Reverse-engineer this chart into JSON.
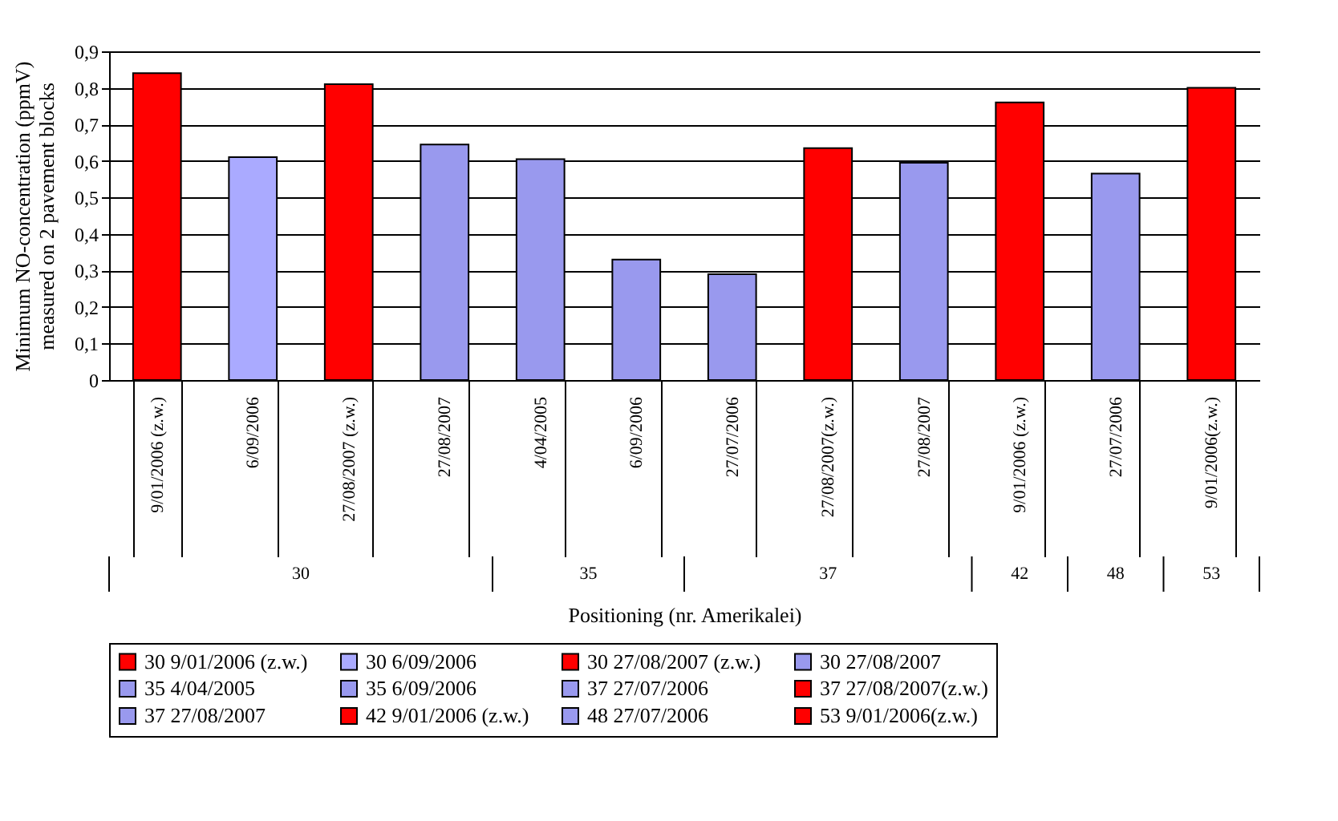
{
  "chart_data": {
    "type": "bar",
    "ylabel": "Minimum NO-concentration (ppmV)\nmeasured on 2 pavement blocks",
    "xlabel": "Positioning (nr. Amerikalei)",
    "categories": [
      "9/01/2006 (z.w.)",
      "6/09/2006",
      "27/08/2007 (z.w.)",
      "27/08/2007",
      "4/04/2005",
      "6/09/2006",
      "27/07/2006",
      "27/08/2007(z.w.)",
      "27/08/2007",
      "9/01/2006 (z.w.)",
      "27/07/2006",
      "9/01/2006(z.w.)"
    ],
    "series": [
      {
        "name": "30 9/01/2006 (z.w.)",
        "color": "#ff0000",
        "values": [
          0.84,
          null,
          null,
          null,
          null,
          null,
          null,
          null,
          null,
          null,
          null,
          null
        ]
      },
      {
        "name": "30 6/09/2006",
        "color": "#aaaaff",
        "values": [
          null,
          0.61,
          null,
          null,
          null,
          null,
          null,
          null,
          null,
          null,
          null,
          null
        ]
      },
      {
        "name": "30 27/08/2007 (z.w.)",
        "color": "#ff0000",
        "values": [
          null,
          null,
          0.81,
          null,
          null,
          null,
          null,
          null,
          null,
          null,
          null,
          null
        ]
      },
      {
        "name": "30 27/08/2007",
        "color": "#9999ee",
        "values": [
          null,
          null,
          null,
          0.645,
          null,
          null,
          null,
          null,
          null,
          null,
          null,
          null
        ]
      },
      {
        "name": "35 4/04/2005",
        "color": "#9999ee",
        "values": [
          null,
          null,
          null,
          null,
          0.605,
          null,
          null,
          null,
          null,
          null,
          null,
          null
        ]
      },
      {
        "name": "35 6/09/2006",
        "color": "#9999ee",
        "values": [
          null,
          null,
          null,
          null,
          null,
          0.33,
          null,
          null,
          null,
          null,
          null,
          null
        ]
      },
      {
        "name": "37 27/07/2006",
        "color": "#9999ee",
        "values": [
          null,
          null,
          null,
          null,
          null,
          null,
          0.29,
          null,
          null,
          null,
          null,
          null
        ]
      },
      {
        "name": "37 27/08/2007(z.w.)",
        "color": "#ff0000",
        "values": [
          null,
          null,
          null,
          null,
          null,
          null,
          null,
          0.635,
          null,
          null,
          null,
          null
        ]
      },
      {
        "name": "37 27/08/2007",
        "color": "#9999ee",
        "values": [
          null,
          null,
          null,
          null,
          null,
          null,
          null,
          null,
          0.595,
          null,
          null,
          null
        ]
      },
      {
        "name": "42 9/01/2006 (z.w.)",
        "color": "#ff0000",
        "values": [
          null,
          null,
          null,
          null,
          null,
          null,
          null,
          null,
          null,
          0.76,
          null,
          null
        ]
      },
      {
        "name": "48 27/07/2006",
        "color": "#9999ee",
        "values": [
          null,
          null,
          null,
          null,
          null,
          null,
          null,
          null,
          null,
          null,
          0.565,
          null
        ]
      },
      {
        "name": "53 9/01/2006(z.w.)",
        "color": "#ff0000",
        "values": [
          null,
          null,
          null,
          null,
          null,
          null,
          null,
          null,
          null,
          null,
          null,
          0.8
        ]
      }
    ],
    "ylim": [
      0,
      0.9
    ],
    "yticks": [
      0,
      {
        "value": 0.1,
        "label": "0,1"
      },
      {
        "value": 0.2,
        "label": "0,2"
      },
      {
        "value": 0.3,
        "label": "0,3"
      },
      {
        "value": 0.4,
        "label": "0,4"
      },
      {
        "value": 0.5,
        "label": "0,5"
      },
      {
        "value": 0.6,
        "label": "0,6"
      },
      {
        "value": 0.7,
        "label": "0,7"
      },
      {
        "value": 0.8,
        "label": "0,8"
      },
      {
        "value": 0.9,
        "label": "0,9"
      }
    ],
    "annotations": [
      "30",
      "35",
      "37",
      "42",
      "48",
      "53"
    ],
    "grid": "y",
    "legend": "bottom"
  }
}
